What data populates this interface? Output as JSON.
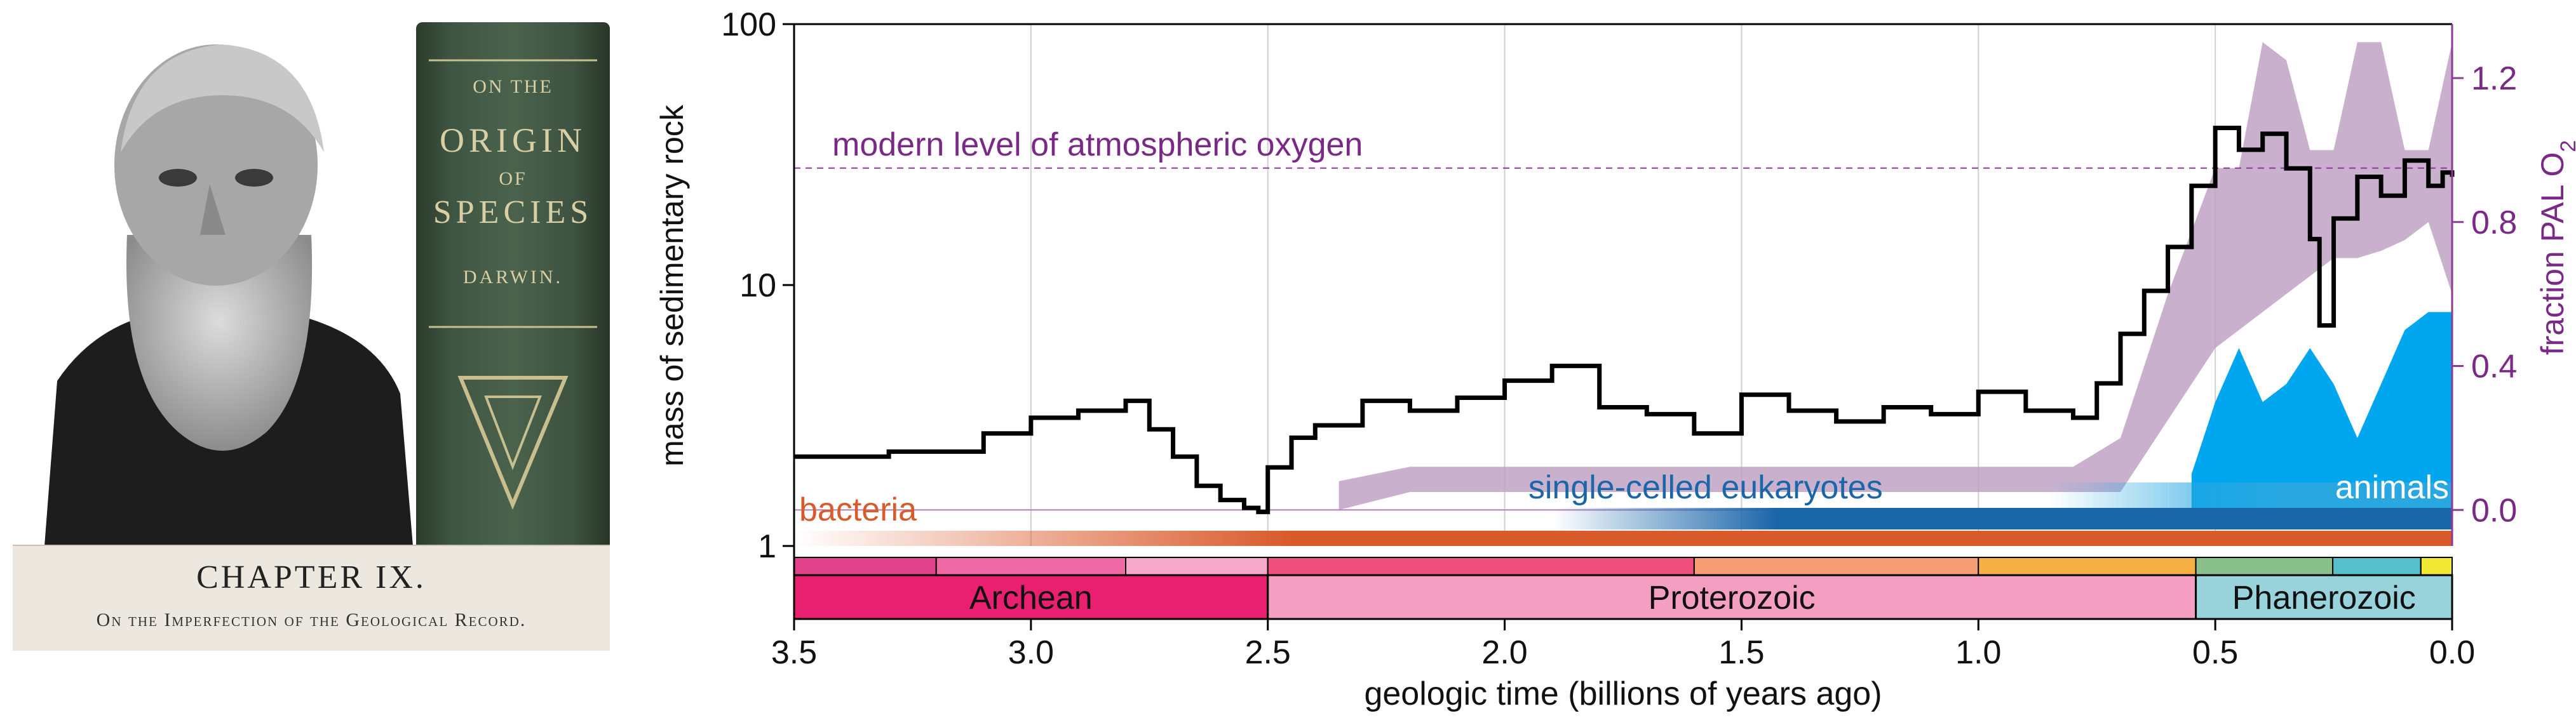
{
  "book": {
    "spine_lines": [
      "ON THE",
      "ORIGIN",
      "OF",
      "SPECIES",
      "DARWIN."
    ],
    "chapter_title": "CHAPTER IX.",
    "chapter_subtitle": "On the Imperfection of the Geological Record."
  },
  "chart_data": {
    "type": "line",
    "x_label": "geologic time (billions of years ago)",
    "x_range": [
      3.5,
      0.0
    ],
    "x_ticks": [
      "3.5",
      "3.0",
      "2.5",
      "2.0",
      "1.5",
      "1.0",
      "0.5",
      "0.0"
    ],
    "y_label": "mass of sedimentary rock",
    "y_scale": "log",
    "y_range": [
      1,
      100
    ],
    "y_ticks": [
      "1",
      "10",
      "100"
    ],
    "y2_label": "fraction PAL O",
    "y2_subscript": "2",
    "y2_ticks": [
      "0.0",
      "0.4",
      "0.8",
      "1.2"
    ],
    "y2_range": [
      -0.1,
      1.35
    ],
    "grid": "vertical",
    "reference_line": {
      "label": "modern level of atmospheric oxygen",
      "y2_value": 0.95
    },
    "series": [
      {
        "name": "mass of sedimentary rock",
        "color": "#000000",
        "x": [
          3.5,
          3.3,
          3.1,
          3.0,
          2.9,
          2.8,
          2.75,
          2.7,
          2.65,
          2.6,
          2.55,
          2.52,
          2.5,
          2.45,
          2.4,
          2.3,
          2.2,
          2.1,
          2.0,
          1.9,
          1.8,
          1.7,
          1.6,
          1.5,
          1.4,
          1.3,
          1.2,
          1.1,
          1.0,
          0.9,
          0.8,
          0.75,
          0.7,
          0.65,
          0.6,
          0.55,
          0.5,
          0.45,
          0.4,
          0.35,
          0.3,
          0.28,
          0.25,
          0.2,
          0.15,
          0.1,
          0.05,
          0.02,
          0.0
        ],
        "values": [
          2.2,
          2.3,
          2.7,
          3.1,
          3.3,
          3.6,
          2.8,
          2.2,
          1.7,
          1.5,
          1.4,
          1.35,
          2.0,
          2.6,
          2.9,
          3.6,
          3.3,
          3.7,
          4.3,
          4.9,
          3.4,
          3.2,
          2.7,
          3.8,
          3.3,
          3.0,
          3.4,
          3.2,
          3.9,
          3.3,
          3.1,
          4.2,
          6.5,
          9.5,
          14.0,
          24.0,
          40.0,
          33.0,
          38.0,
          28.0,
          15.0,
          7.0,
          18.0,
          26.0,
          22.0,
          30.0,
          24.0,
          27.0,
          26.0
        ]
      },
      {
        "name": "fraction PAL O2 (range)",
        "color": "#c0a3c6",
        "x": [
          2.35,
          2.2,
          1.0,
          0.8,
          0.7,
          0.6,
          0.5,
          0.45,
          0.4,
          0.35,
          0.3,
          0.25,
          0.2,
          0.15,
          0.1,
          0.05,
          0.0
        ],
        "lower": [
          0.0,
          0.05,
          0.05,
          0.05,
          0.05,
          0.25,
          0.45,
          0.5,
          0.55,
          0.6,
          0.65,
          0.7,
          0.7,
          0.72,
          0.75,
          0.8,
          0.6
        ],
        "upper": [
          0.08,
          0.12,
          0.12,
          0.12,
          0.2,
          0.6,
          0.95,
          0.95,
          1.3,
          1.25,
          1.0,
          1.0,
          1.3,
          1.3,
          1.0,
          1.0,
          1.3
        ]
      },
      {
        "name": "animals",
        "color": "#00a6ee",
        "x": [
          0.55,
          0.5,
          0.45,
          0.4,
          0.35,
          0.3,
          0.25,
          0.2,
          0.15,
          0.1,
          0.05,
          0.0
        ],
        "values": [
          0.1,
          0.3,
          0.45,
          0.3,
          0.35,
          0.45,
          0.35,
          0.2,
          0.35,
          0.5,
          0.55,
          0.55
        ]
      }
    ],
    "life_bars": [
      {
        "label": "bacteria",
        "color": "#d95a2b",
        "start": 3.5,
        "end": 0.0
      },
      {
        "label": "single-celled eukaryotes",
        "color": "#1a66a9",
        "start": 1.9,
        "end": 0.0
      },
      {
        "label": "animals",
        "color": "#29a7e0",
        "start": 0.6,
        "end": 0.0
      }
    ],
    "eons": [
      {
        "label": "Archean",
        "start": 3.5,
        "end": 2.5,
        "color": "#e8206f"
      },
      {
        "label": "Proterozoic",
        "start": 2.5,
        "end": 0.541,
        "color": "#f49fc1"
      },
      {
        "label": "Phanerozoic",
        "start": 0.541,
        "end": 0.0,
        "color": "#98d2da"
      }
    ],
    "eras": [
      {
        "start": 3.5,
        "end": 3.2,
        "color": "#e0438a"
      },
      {
        "start": 3.2,
        "end": 2.8,
        "color": "#ef6aa5"
      },
      {
        "start": 2.8,
        "end": 2.5,
        "color": "#f6a8c8"
      },
      {
        "start": 2.5,
        "end": 1.6,
        "color": "#ef4f7c"
      },
      {
        "start": 1.6,
        "end": 1.0,
        "color": "#f79d76"
      },
      {
        "start": 1.0,
        "end": 0.541,
        "color": "#f6b043"
      },
      {
        "start": 0.541,
        "end": 0.252,
        "color": "#89c08b"
      },
      {
        "start": 0.252,
        "end": 0.066,
        "color": "#55c0cc"
      },
      {
        "start": 0.066,
        "end": 0.0,
        "color": "#f2e934"
      }
    ]
  }
}
